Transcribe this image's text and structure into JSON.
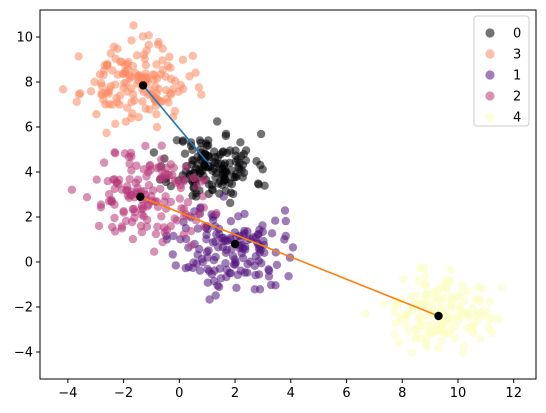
{
  "chart_data": {
    "type": "scatter",
    "title": "",
    "xlabel": "",
    "ylabel": "",
    "xlim": [
      -5,
      12.8
    ],
    "ylim": [
      -5.2,
      11.2
    ],
    "xticks": [
      -4,
      -2,
      0,
      2,
      4,
      6,
      8,
      10,
      12
    ],
    "yticks": [
      -4,
      -2,
      0,
      2,
      4,
      6,
      8,
      10
    ],
    "grid": false,
    "legend_position": "top-right",
    "series": [
      {
        "name": "0",
        "color": "#000004",
        "center": [
          1.2,
          4.2
        ],
        "spread": [
          0.75,
          0.75
        ],
        "count": 150,
        "seed": 11
      },
      {
        "name": "3",
        "color": "#fc8961",
        "center": [
          -1.6,
          7.9
        ],
        "spread": [
          0.95,
          0.85
        ],
        "count": 150,
        "seed": 23
      },
      {
        "name": "1",
        "color": "#51127c",
        "center": [
          1.8,
          0.6
        ],
        "spread": [
          0.95,
          0.95
        ],
        "count": 150,
        "seed": 37
      },
      {
        "name": "2",
        "color": "#b73779",
        "center": [
          -1.2,
          2.9
        ],
        "spread": [
          1.05,
          1.05
        ],
        "count": 150,
        "seed": 51
      },
      {
        "name": "4",
        "color": "#fcfdbf",
        "center": [
          9.3,
          -2.4
        ],
        "spread": [
          0.9,
          0.8
        ],
        "count": 150,
        "seed": 67
      }
    ],
    "centroids": [
      [
        0.9,
        4.3
      ],
      [
        -1.3,
        7.85
      ],
      [
        2.0,
        0.8
      ],
      [
        -1.4,
        2.9
      ],
      [
        9.3,
        -2.4
      ]
    ],
    "lines": [
      {
        "color": "#1f77b4",
        "points": [
          [
            -1.3,
            7.85
          ],
          [
            1.1,
            4.3
          ]
        ]
      },
      {
        "color": "#ff7f0e",
        "points": [
          [
            -1.4,
            2.9
          ],
          [
            9.3,
            -2.4
          ]
        ]
      }
    ]
  }
}
